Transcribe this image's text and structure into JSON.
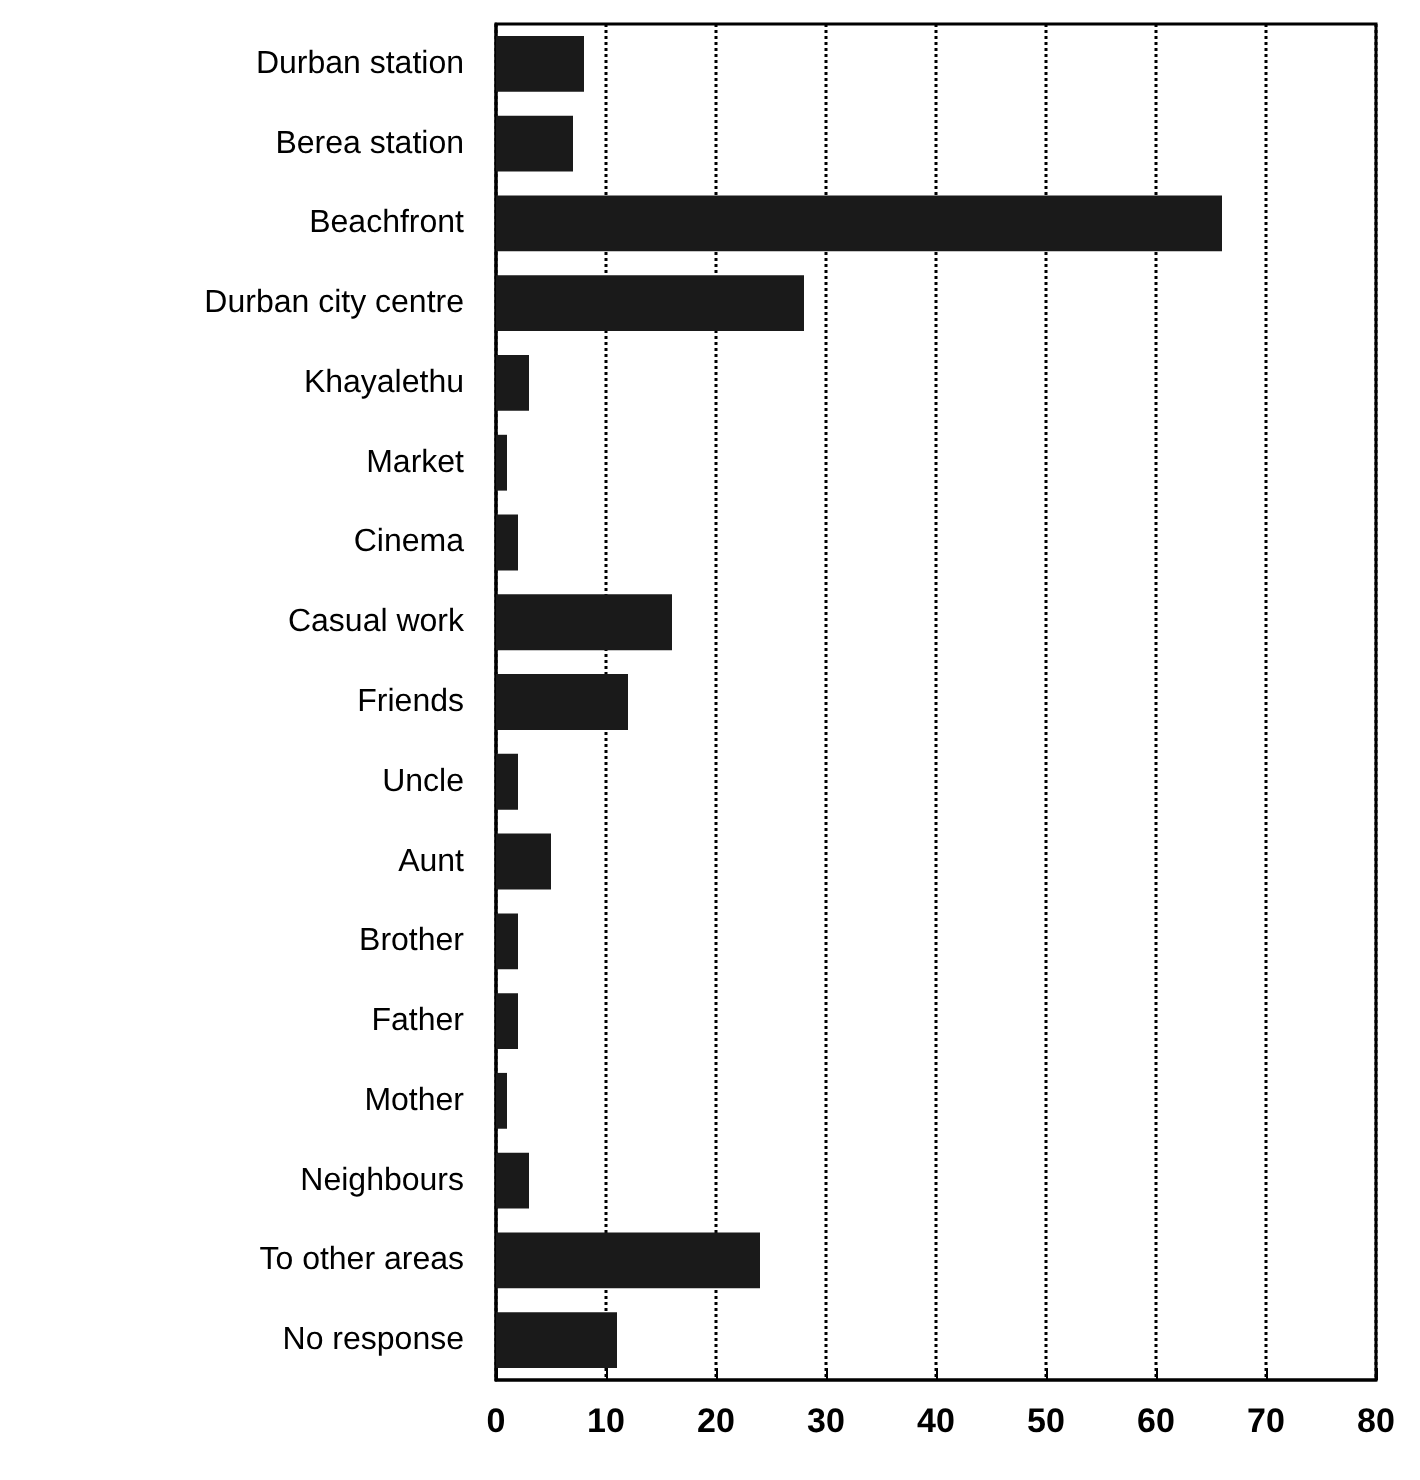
{
  "chart_data": {
    "type": "bar",
    "orientation": "horizontal",
    "categories": [
      "Durban station",
      "Berea station",
      "Beachfront",
      "Durban city centre",
      "Khayalethu",
      "Market",
      "Cinema",
      "Casual work",
      "Friends",
      "Uncle",
      "Aunt",
      "Brother",
      "Father",
      "Mother",
      "Neighbours",
      "To other areas",
      "No response"
    ],
    "values": [
      8,
      7,
      66,
      28,
      3,
      1,
      2,
      16,
      12,
      2,
      5,
      2,
      2,
      1,
      3,
      24,
      11
    ],
    "color": "#1a1a1a",
    "xlim": [
      0,
      80
    ],
    "xticks": [
      0,
      10,
      20,
      30,
      40,
      50,
      60,
      70,
      80
    ],
    "grid": "x"
  }
}
